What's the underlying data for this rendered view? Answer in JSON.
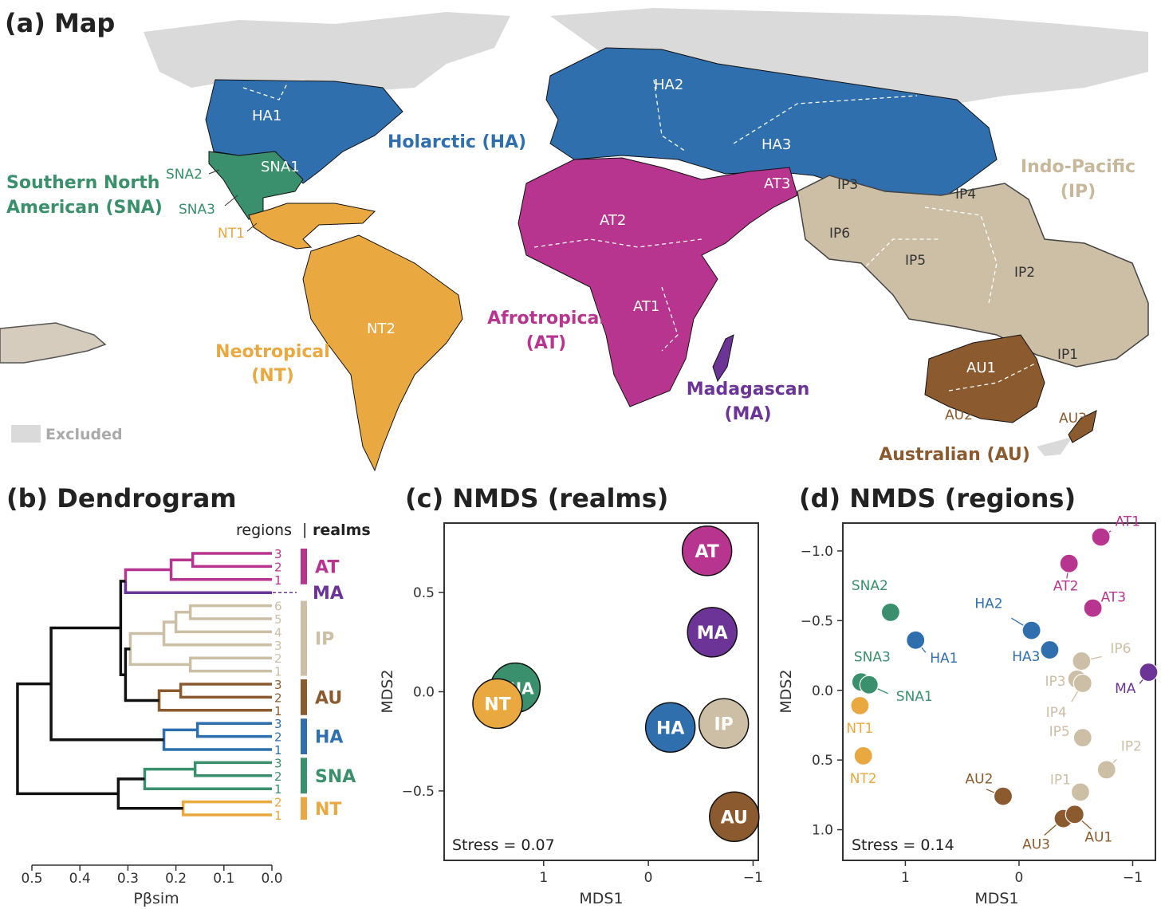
{
  "panels": {
    "a": "(a) Map",
    "b": "(b) Dendrogram",
    "c": "(c) NMDS (realms)",
    "d": "(d) NMDS (regions)"
  },
  "colors": {
    "HA": "#2f6fae",
    "SNA": "#3a8f6c",
    "NT": "#e9a840",
    "AT": "#b8358f",
    "MA": "#6b3496",
    "IP": "#cdbfa6",
    "AU": "#8b5a2e",
    "excluded": "#dadada"
  },
  "map": {
    "legend_excluded": "Excluded",
    "realm_labels": {
      "HA": "Holarctic (HA)",
      "SNA_1": "Southern North",
      "SNA_2": "American (SNA)",
      "NT_1": "Neotropical",
      "NT_2": "(NT)",
      "AT_1": "Afrotropical",
      "AT_2": "(AT)",
      "MA_1": "Madagascan",
      "MA_2": "(MA)",
      "IP_1": "Indo-Pacific",
      "IP_2": "(IP)",
      "AU": "Australian (AU)"
    },
    "region_labels": {
      "HA1": "HA1",
      "HA2": "HA2",
      "HA3": "HA3",
      "SNA1": "SNA1",
      "SNA2": "SNA2",
      "SNA3": "SNA3",
      "NT1": "NT1",
      "NT2": "NT2",
      "AT1": "AT1",
      "AT2": "AT2",
      "AT3": "AT3",
      "IP1": "IP1",
      "IP2": "IP2",
      "IP3": "IP3",
      "IP4": "IP4",
      "IP5": "IP5",
      "IP6": "IP6",
      "AU1": "AU1",
      "AU2": "AU2",
      "AU3": "AU3"
    }
  },
  "dendrogram": {
    "header_regions": "regions",
    "header_sep": "|",
    "header_realms": "realms",
    "xlabel": "Pβsim",
    "xticks": [
      "0.5",
      "0.4",
      "0.3",
      "0.2",
      "0.1",
      "0.0"
    ],
    "xtick_values": [
      0.5,
      0.4,
      0.3,
      0.2,
      0.1,
      0.0
    ],
    "leaves": [
      {
        "label": "3",
        "realm": "AT"
      },
      {
        "label": "2",
        "realm": "AT"
      },
      {
        "label": "1",
        "realm": "AT"
      },
      {
        "label": "",
        "realm": "MA"
      },
      {
        "label": "6",
        "realm": "IP"
      },
      {
        "label": "5",
        "realm": "IP"
      },
      {
        "label": "4",
        "realm": "IP"
      },
      {
        "label": "3",
        "realm": "IP"
      },
      {
        "label": "2",
        "realm": "IP"
      },
      {
        "label": "1",
        "realm": "IP"
      },
      {
        "label": "3",
        "realm": "AU"
      },
      {
        "label": "2",
        "realm": "AU"
      },
      {
        "label": "1",
        "realm": "AU"
      },
      {
        "label": "3",
        "realm": "HA"
      },
      {
        "label": "2",
        "realm": "HA"
      },
      {
        "label": "1",
        "realm": "HA"
      },
      {
        "label": "3",
        "realm": "SNA"
      },
      {
        "label": "2",
        "realm": "SNA"
      },
      {
        "label": "1",
        "realm": "SNA"
      },
      {
        "label": "2",
        "realm": "NT"
      },
      {
        "label": "1",
        "realm": "NT"
      }
    ],
    "realm_labels": [
      "AT",
      "MA",
      "IP",
      "AU",
      "HA",
      "SNA",
      "NT"
    ]
  },
  "chart_data": [
    {
      "type": "scatter",
      "title": "(c) NMDS (realms)",
      "xlabel": "MDS1",
      "ylabel": "MDS2",
      "xlim": [
        1.95,
        -1.05
      ],
      "ylim": [
        -0.85,
        0.85
      ],
      "x_reversed": true,
      "xticks": [
        1,
        0,
        -1
      ],
      "xtick_labels": [
        "1",
        "0",
        "−1"
      ],
      "yticks": [
        0.5,
        0.0,
        -0.5
      ],
      "ytick_labels": [
        "0.5",
        "0.0",
        "−0.5"
      ],
      "annotation": "Stress = 0.07",
      "points": [
        {
          "label": "AT",
          "x": -0.56,
          "y": 0.71
        },
        {
          "label": "MA",
          "x": -0.61,
          "y": 0.3
        },
        {
          "label": "SNA",
          "x": 1.27,
          "y": 0.02
        },
        {
          "label": "NT",
          "x": 1.44,
          "y": -0.06
        },
        {
          "label": "HA",
          "x": -0.21,
          "y": -0.18
        },
        {
          "label": "IP",
          "x": -0.72,
          "y": -0.16
        },
        {
          "label": "AU",
          "x": -0.82,
          "y": -0.63
        }
      ]
    },
    {
      "type": "scatter",
      "title": "(d) NMDS (regions)",
      "xlabel": "MDS1",
      "ylabel": "MDS2",
      "xlim": [
        1.55,
        -1.2
      ],
      "ylim": [
        1.22,
        -1.2
      ],
      "x_reversed": true,
      "y_reversed": true,
      "xticks": [
        1,
        0,
        -1
      ],
      "xtick_labels": [
        "1",
        "0",
        "−1"
      ],
      "yticks": [
        -1.0,
        -0.5,
        0.0,
        0.5,
        1.0
      ],
      "ytick_labels": [
        "−1.0",
        "−0.5",
        "0.0",
        "0.5",
        "1.0"
      ],
      "annotation": "Stress = 0.14",
      "points": [
        {
          "label": "AT1",
          "realm": "AT",
          "x": -0.72,
          "y": -1.1
        },
        {
          "label": "AT2",
          "realm": "AT",
          "x": -0.44,
          "y": -0.91
        },
        {
          "label": "AT3",
          "realm": "AT",
          "x": -0.65,
          "y": -0.59
        },
        {
          "label": "SNA2",
          "realm": "SNA",
          "x": 1.13,
          "y": -0.56
        },
        {
          "label": "HA2",
          "realm": "HA",
          "x": -0.11,
          "y": -0.43
        },
        {
          "label": "HA1",
          "realm": "HA",
          "x": 0.91,
          "y": -0.36
        },
        {
          "label": "HA3",
          "realm": "HA",
          "x": -0.27,
          "y": -0.29
        },
        {
          "label": "IP6",
          "realm": "IP",
          "x": -0.55,
          "y": -0.21
        },
        {
          "label": "IP3",
          "realm": "IP",
          "x": -0.51,
          "y": -0.08
        },
        {
          "label": "IP4",
          "realm": "IP",
          "x": -0.56,
          "y": -0.05
        },
        {
          "label": "MA",
          "realm": "MA",
          "x": -1.14,
          "y": -0.13
        },
        {
          "label": "SNA3",
          "realm": "SNA",
          "x": 1.39,
          "y": -0.06
        },
        {
          "label": "SNA1",
          "realm": "SNA",
          "x": 1.32,
          "y": -0.04
        },
        {
          "label": "NT1",
          "realm": "NT",
          "x": 1.4,
          "y": 0.11
        },
        {
          "label": "IP5",
          "realm": "IP",
          "x": -0.56,
          "y": 0.34
        },
        {
          "label": "NT2",
          "realm": "NT",
          "x": 1.37,
          "y": 0.47
        },
        {
          "label": "IP2",
          "realm": "IP",
          "x": -0.77,
          "y": 0.57
        },
        {
          "label": "IP1",
          "realm": "IP",
          "x": -0.54,
          "y": 0.73
        },
        {
          "label": "AU2",
          "realm": "AU",
          "x": 0.14,
          "y": 0.76
        },
        {
          "label": "AU3",
          "realm": "AU",
          "x": -0.39,
          "y": 0.92
        },
        {
          "label": "AU1",
          "realm": "AU",
          "x": -0.49,
          "y": 0.89
        }
      ]
    }
  ]
}
